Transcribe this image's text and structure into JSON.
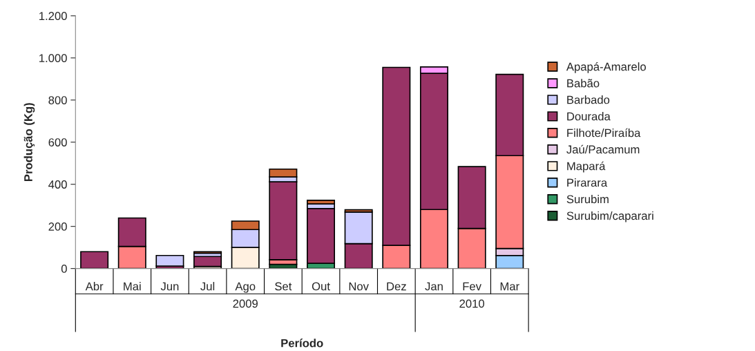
{
  "chart_data": {
    "type": "bar",
    "stacked": true,
    "xlabel": "Período",
    "ylabel": "Produção (Kg)",
    "categories": [
      "Abr",
      "Mai",
      "Jun",
      "Jul",
      "Ago",
      "Set",
      "Out",
      "Nov",
      "Dez",
      "Jan",
      "Fev",
      "Mar"
    ],
    "series": [
      {
        "name": "Surubim/caparari",
        "color": "#1a5c33",
        "values": [
          0,
          0,
          0,
          0,
          0,
          20,
          0,
          0,
          0,
          0,
          0,
          0
        ]
      },
      {
        "name": "Surubim",
        "color": "#339966",
        "values": [
          0,
          0,
          0,
          0,
          0,
          0,
          25,
          0,
          0,
          0,
          0,
          0
        ]
      },
      {
        "name": "Pirarara",
        "color": "#99ccff",
        "values": [
          0,
          0,
          0,
          0,
          0,
          0,
          0,
          0,
          0,
          0,
          0,
          62
        ]
      },
      {
        "name": "Mapará",
        "color": "#fff0e0",
        "values": [
          0,
          0,
          0,
          10,
          100,
          0,
          0,
          0,
          0,
          0,
          0,
          0
        ]
      },
      {
        "name": "Jaú/Pacamum",
        "color": "#e6c8e6",
        "values": [
          0,
          0,
          0,
          0,
          0,
          0,
          0,
          0,
          0,
          0,
          0,
          33
        ]
      },
      {
        "name": "Filhote/Piraíba",
        "color": "#ff8080",
        "values": [
          0,
          105,
          null,
          0,
          0,
          22,
          0,
          null,
          110,
          280,
          190,
          441
        ]
      },
      {
        "name": "Dourada",
        "color": "#993366",
        "values": [
          80,
          135,
          12,
          47,
          0,
          370,
          260,
          118,
          845,
          647,
          294,
          386
        ]
      },
      {
        "name": "Barbado",
        "color": "#ccccff",
        "values": [
          0,
          0,
          50,
          16,
          85,
          23,
          22,
          150,
          0,
          0,
          0,
          0
        ]
      },
      {
        "name": "Babão",
        "color": "#ff99ff",
        "values": [
          0,
          0,
          0,
          0,
          0,
          0,
          0,
          0,
          0,
          30,
          0,
          0
        ]
      },
      {
        "name": "Apapá-Amarelo",
        "color": "#cc6633",
        "values": [
          0,
          0,
          0,
          7,
          40,
          37,
          17,
          11,
          0,
          0,
          0,
          0
        ]
      }
    ],
    "ylim": [
      0,
      1200
    ],
    "yticks": [
      0,
      200,
      400,
      600,
      800,
      {
        "value": 1000,
        "label": "1.000"
      },
      {
        "value": 1200,
        "label": "1.200"
      }
    ],
    "annotations": [
      "2009",
      "2010"
    ],
    "legend": "right",
    "grid": false
  }
}
